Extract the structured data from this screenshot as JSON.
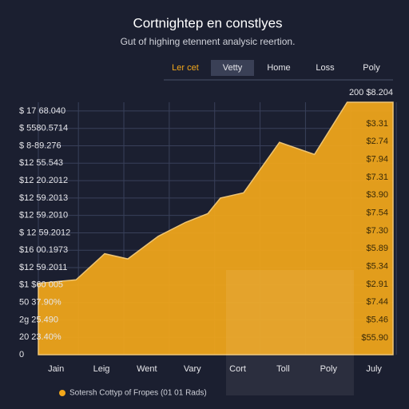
{
  "chart_data": {
    "type": "area",
    "title": "Cortnightep en constlyes",
    "subtitle": "Gut of highing etennent analysic reertion.",
    "tabs": [
      "Ler cet",
      "Vetty",
      "Home",
      "Loss",
      "Poly"
    ],
    "top_label": "200 $8.204",
    "right_labels": [
      "$3.31",
      "$2.74",
      "$7.94",
      "$7.31",
      "$3.90",
      "$7.54",
      "$7.30",
      "$5.89",
      "$5.34",
      "$2.91",
      "$7.44",
      "$5.46",
      "$55.90"
    ],
    "series": [
      {
        "name": "Sotersh Cottyp of Fropes (01 01 Rads)",
        "color": "#f2a71b",
        "x": [
          -0.39,
          0.44,
          1.07,
          1.58,
          2.25,
          2.85,
          3.34,
          3.62,
          4.13,
          4.92,
          5.69,
          6.41,
          7.42
        ],
        "values": [
          4.1,
          4.3,
          5.8,
          5.5,
          6.8,
          7.6,
          8.1,
          9.0,
          9.3,
          12.2,
          11.5,
          14.5,
          14.5
        ]
      }
    ],
    "xlim": [
      -0.39,
      7.42
    ],
    "xticks": [
      {
        "value": 0,
        "label": "Jain"
      },
      {
        "value": 1,
        "label": "Leig"
      },
      {
        "value": 2,
        "label": "Went"
      },
      {
        "value": 3,
        "label": "Vary"
      },
      {
        "value": 4,
        "label": "Cort"
      },
      {
        "value": 5,
        "label": "Toll"
      },
      {
        "value": 6,
        "label": "Poly"
      },
      {
        "value": 7,
        "label": "July"
      }
    ],
    "ylim": [
      0,
      14.5
    ],
    "yticks": [
      0,
      {
        "value": 1,
        "label": "20 23.40%"
      },
      {
        "value": 2,
        "label": "2g 25.490"
      },
      {
        "value": 3,
        "label": "50 37.90%"
      },
      {
        "value": 4,
        "label": "$1 $60 005"
      },
      {
        "value": 5,
        "label": "$12 59.2011"
      },
      {
        "value": 6,
        "label": "$16 00.1973"
      },
      {
        "value": 7,
        "label": "$ 12 59.2012"
      },
      {
        "value": 8,
        "label": "$12 59.2010"
      },
      {
        "value": 9,
        "label": "$12 59.2013"
      },
      {
        "value": 10,
        "label": "$12 20.2012"
      },
      {
        "value": 11,
        "label": "$12 55.543"
      },
      {
        "value": 12,
        "label": "$ 8-89.276"
      },
      {
        "value": 13,
        "label": "$ 5580.5714"
      },
      {
        "value": 14,
        "label": "$ 17 68.040"
      }
    ],
    "grid": true,
    "legend": "bottom-left"
  }
}
